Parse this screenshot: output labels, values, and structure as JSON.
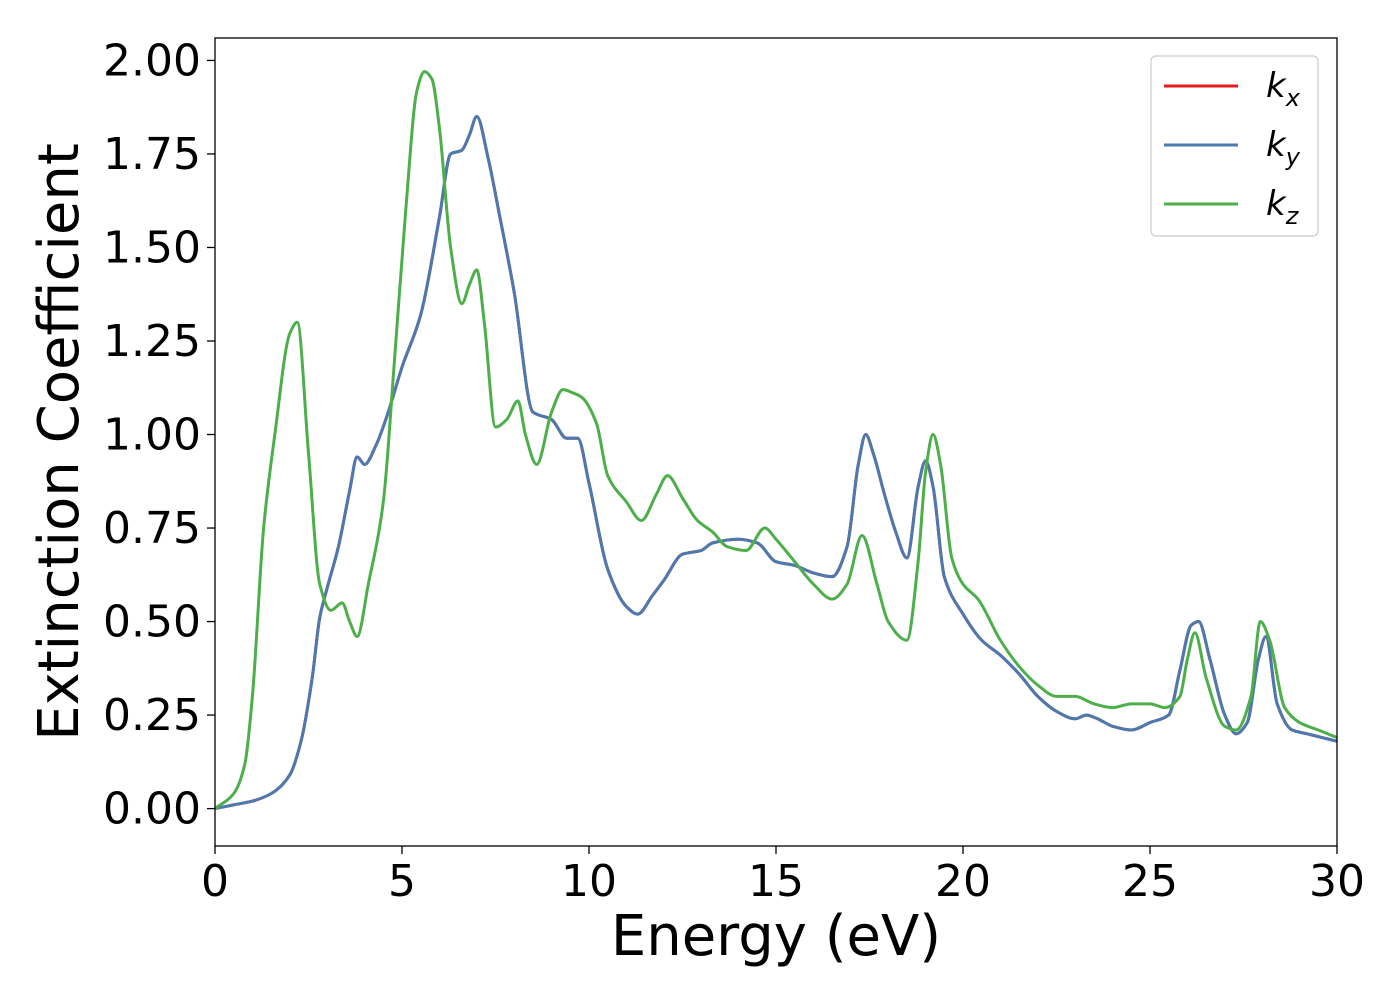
{
  "chart_data": {
    "type": "line",
    "xlabel": "Energy (eV)",
    "ylabel": "Extinction Coefficient",
    "xlim": [
      0,
      30
    ],
    "ylim": [
      -0.1,
      2.06
    ],
    "x_ticks": [
      0,
      5,
      10,
      15,
      20,
      25,
      30
    ],
    "x_tick_labels": [
      "0",
      "5",
      "10",
      "15",
      "20",
      "25",
      "30"
    ],
    "y_ticks": [
      0,
      0.25,
      0.5,
      0.75,
      1.0,
      1.25,
      1.5,
      1.75,
      2.0
    ],
    "y_tick_labels": [
      "0.00",
      "0.25",
      "0.50",
      "0.75",
      "1.00",
      "1.25",
      "1.50",
      "1.75",
      "2.00"
    ],
    "grid": false,
    "legend_position": "top-right",
    "series": [
      {
        "name": "k_x",
        "label_base": "k",
        "label_sub": "x",
        "color": "#e41a1c",
        "x": [
          0,
          0.5,
          1.0,
          1.5,
          2.0,
          2.3,
          2.6,
          2.8,
          3.0,
          3.3,
          3.6,
          3.8,
          4.0,
          4.3,
          4.6,
          5.0,
          5.5,
          6.0,
          6.3,
          6.6,
          6.8,
          7.0,
          7.3,
          7.6,
          8.0,
          8.5,
          9.0,
          9.4,
          9.7,
          10.0,
          10.5,
          11.0,
          11.3,
          11.7,
          12.0,
          12.5,
          13.0,
          13.3,
          14.0,
          14.5,
          15.0,
          15.5,
          16.0,
          16.5,
          16.9,
          17.2,
          17.4,
          17.6,
          17.9,
          18.2,
          18.5,
          18.8,
          19.0,
          19.2,
          19.5,
          20.0,
          20.5,
          21.0,
          21.5,
          22.0,
          22.5,
          23.0,
          23.3,
          23.6,
          24.0,
          24.5,
          25.0,
          25.5,
          25.8,
          26.1,
          26.3,
          26.6,
          27.0,
          27.3,
          27.6,
          27.9,
          28.1,
          28.4,
          28.8,
          29.2,
          29.6,
          30.0
        ],
        "y": [
          0.0,
          0.01,
          0.02,
          0.04,
          0.09,
          0.18,
          0.35,
          0.51,
          0.59,
          0.7,
          0.85,
          0.94,
          0.92,
          0.97,
          1.05,
          1.18,
          1.32,
          1.58,
          1.75,
          1.76,
          1.8,
          1.85,
          1.74,
          1.59,
          1.38,
          1.06,
          1.04,
          0.99,
          0.99,
          0.87,
          0.64,
          0.54,
          0.52,
          0.57,
          0.61,
          0.68,
          0.69,
          0.71,
          0.72,
          0.71,
          0.66,
          0.65,
          0.63,
          0.62,
          0.7,
          0.92,
          1.0,
          0.95,
          0.84,
          0.74,
          0.67,
          0.86,
          0.93,
          0.86,
          0.62,
          0.52,
          0.45,
          0.41,
          0.36,
          0.3,
          0.26,
          0.24,
          0.25,
          0.24,
          0.22,
          0.21,
          0.23,
          0.25,
          0.37,
          0.49,
          0.5,
          0.4,
          0.25,
          0.2,
          0.23,
          0.4,
          0.46,
          0.28,
          0.21,
          0.2,
          0.19,
          0.18
        ]
      },
      {
        "name": "k_y",
        "label_base": "k",
        "label_sub": "y",
        "color": "#4a7ab0",
        "x": [
          0,
          0.5,
          1.0,
          1.5,
          2.0,
          2.3,
          2.6,
          2.8,
          3.0,
          3.3,
          3.6,
          3.8,
          4.0,
          4.3,
          4.6,
          5.0,
          5.5,
          6.0,
          6.3,
          6.6,
          6.8,
          7.0,
          7.3,
          7.6,
          8.0,
          8.5,
          9.0,
          9.4,
          9.7,
          10.0,
          10.5,
          11.0,
          11.3,
          11.7,
          12.0,
          12.5,
          13.0,
          13.3,
          14.0,
          14.5,
          15.0,
          15.5,
          16.0,
          16.5,
          16.9,
          17.2,
          17.4,
          17.6,
          17.9,
          18.2,
          18.5,
          18.8,
          19.0,
          19.2,
          19.5,
          20.0,
          20.5,
          21.0,
          21.5,
          22.0,
          22.5,
          23.0,
          23.3,
          23.6,
          24.0,
          24.5,
          25.0,
          25.5,
          25.8,
          26.1,
          26.3,
          26.6,
          27.0,
          27.3,
          27.6,
          27.9,
          28.1,
          28.4,
          28.8,
          29.2,
          29.6,
          30.0
        ],
        "y": [
          0.0,
          0.01,
          0.02,
          0.04,
          0.09,
          0.18,
          0.35,
          0.51,
          0.59,
          0.7,
          0.85,
          0.94,
          0.92,
          0.97,
          1.05,
          1.18,
          1.32,
          1.58,
          1.75,
          1.76,
          1.8,
          1.85,
          1.74,
          1.59,
          1.38,
          1.06,
          1.04,
          0.99,
          0.99,
          0.87,
          0.64,
          0.54,
          0.52,
          0.57,
          0.61,
          0.68,
          0.69,
          0.71,
          0.72,
          0.71,
          0.66,
          0.65,
          0.63,
          0.62,
          0.7,
          0.92,
          1.0,
          0.95,
          0.84,
          0.74,
          0.67,
          0.86,
          0.93,
          0.86,
          0.62,
          0.52,
          0.45,
          0.41,
          0.36,
          0.3,
          0.26,
          0.24,
          0.25,
          0.24,
          0.22,
          0.21,
          0.23,
          0.25,
          0.37,
          0.49,
          0.5,
          0.4,
          0.25,
          0.2,
          0.23,
          0.4,
          0.46,
          0.28,
          0.21,
          0.2,
          0.19,
          0.18
        ]
      },
      {
        "name": "k_z",
        "label_base": "k",
        "label_sub": "z",
        "color": "#4daf4a",
        "x": [
          0,
          0.5,
          0.8,
          1.0,
          1.3,
          1.6,
          2.0,
          2.2,
          2.5,
          2.8,
          3.1,
          3.4,
          3.6,
          3.8,
          4.1,
          4.5,
          4.8,
          5.1,
          5.4,
          5.6,
          5.8,
          6.0,
          6.3,
          6.6,
          6.8,
          7.0,
          7.2,
          7.5,
          7.8,
          8.1,
          8.3,
          8.6,
          9.0,
          9.3,
          9.6,
          9.8,
          10.2,
          10.5,
          11.0,
          11.4,
          11.8,
          12.1,
          12.5,
          12.9,
          13.3,
          13.7,
          14.2,
          14.7,
          15.0,
          15.5,
          16.0,
          16.5,
          16.9,
          17.3,
          17.7,
          18.0,
          18.5,
          18.8,
          19.0,
          19.2,
          19.4,
          19.7,
          20.0,
          20.4,
          21.0,
          21.5,
          22.0,
          22.5,
          23.0,
          23.5,
          24.0,
          24.5,
          25.0,
          25.4,
          25.8,
          26.0,
          26.2,
          26.5,
          27.0,
          27.3,
          27.7,
          27.95,
          28.2,
          28.6,
          29.0,
          29.5,
          30.0
        ],
        "y": [
          0.0,
          0.04,
          0.12,
          0.3,
          0.75,
          1.0,
          1.27,
          1.3,
          0.95,
          0.6,
          0.53,
          0.55,
          0.5,
          0.46,
          0.6,
          0.82,
          1.2,
          1.6,
          1.92,
          1.97,
          1.95,
          1.82,
          1.5,
          1.35,
          1.4,
          1.44,
          1.3,
          1.02,
          1.04,
          1.09,
          1.0,
          0.92,
          1.06,
          1.12,
          1.11,
          1.1,
          1.03,
          0.89,
          0.82,
          0.77,
          0.84,
          0.89,
          0.83,
          0.77,
          0.74,
          0.7,
          0.69,
          0.75,
          0.72,
          0.66,
          0.6,
          0.56,
          0.6,
          0.73,
          0.6,
          0.5,
          0.45,
          0.66,
          0.9,
          1.0,
          0.92,
          0.67,
          0.6,
          0.56,
          0.45,
          0.38,
          0.33,
          0.3,
          0.3,
          0.28,
          0.27,
          0.28,
          0.28,
          0.27,
          0.3,
          0.4,
          0.47,
          0.35,
          0.22,
          0.21,
          0.3,
          0.5,
          0.45,
          0.27,
          0.23,
          0.21,
          0.19
        ]
      }
    ]
  }
}
